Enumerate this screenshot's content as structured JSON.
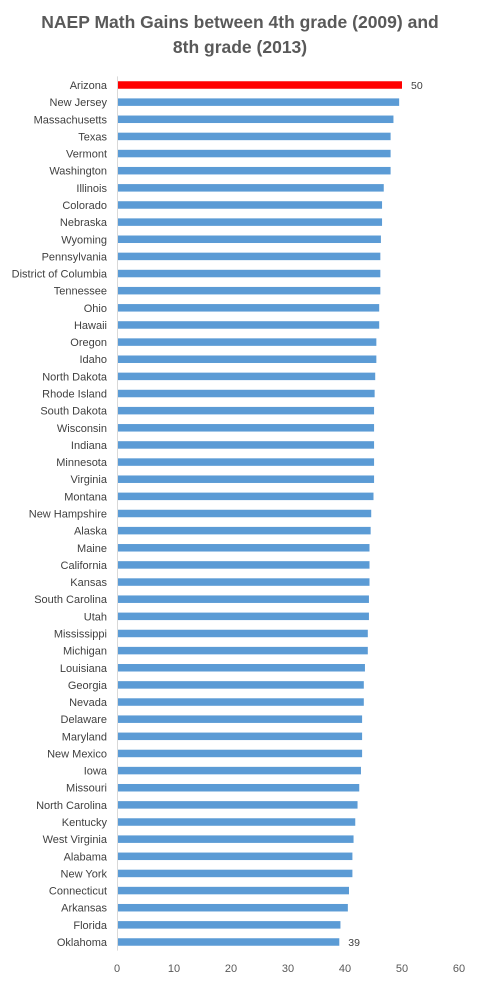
{
  "chart_data": {
    "type": "bar",
    "orientation": "horizontal",
    "title_lines": [
      "NAEP Math Gains between 4th grade (2009) and",
      "8th grade (2013)"
    ],
    "categories": [
      "Arizona",
      "New Jersey",
      "Massachusetts",
      "Texas",
      "Vermont",
      "Washington",
      "Illinois",
      "Colorado",
      "Nebraska",
      "Wyoming",
      "Pennsylvania",
      "District of Columbia",
      "Tennessee",
      "Ohio",
      "Hawaii",
      "Oregon",
      "Idaho",
      "North Dakota",
      "Rhode Island",
      "South Dakota",
      "Wisconsin",
      "Indiana",
      "Minnesota",
      "Virginia",
      "Montana",
      "New Hampshire",
      "Alaska",
      "Maine",
      "California",
      "Kansas",
      "South Carolina",
      "Utah",
      "Mississippi",
      "Michigan",
      "Louisiana",
      "Georgia",
      "Nevada",
      "Delaware",
      "Maryland",
      "New Mexico",
      "Iowa",
      "Missouri",
      "North Carolina",
      "Kentucky",
      "West Virginia",
      "Alabama",
      "New York",
      "Connecticut",
      "Arkansas",
      "Florida",
      "Oklahoma"
    ],
    "values": [
      50,
      49.5,
      48.5,
      48,
      48,
      48,
      46.8,
      46.5,
      46.5,
      46.3,
      46.2,
      46.2,
      46.2,
      46,
      46,
      45.5,
      45.5,
      45.3,
      45.2,
      45.1,
      45.1,
      45.1,
      45.1,
      45.1,
      45,
      44.6,
      44.5,
      44.3,
      44.3,
      44.3,
      44.2,
      44.2,
      44,
      44,
      43.5,
      43.3,
      43.3,
      43,
      43,
      43,
      42.8,
      42.5,
      42.2,
      41.8,
      41.5,
      41.3,
      41.3,
      40.7,
      40.5,
      39.2,
      39
    ],
    "data_labels": [
      {
        "category": "Arizona",
        "text": "50"
      },
      {
        "category": "Oklahoma",
        "text": "39"
      }
    ],
    "highlight_category": "Arizona",
    "bar_color": "#5b9bd5",
    "highlight_color": "#ff0000",
    "xlim": [
      0,
      60
    ],
    "xticks": [
      "0",
      "10",
      "20",
      "30",
      "40",
      "50",
      "60"
    ],
    "xlabel": "",
    "ylabel": "",
    "grid": false,
    "legend": "none"
  }
}
